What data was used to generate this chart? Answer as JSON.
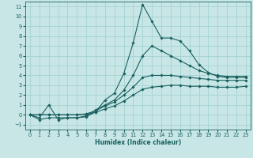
{
  "xlabel": "Humidex (Indice chaleur)",
  "bg_color": "#c8e6e6",
  "grid_color": "#9ecece",
  "line_color": "#1a6060",
  "spine_color": "#1a6060",
  "tick_color": "#1a6060",
  "xlim": [
    -0.5,
    23.5
  ],
  "ylim": [
    -1.5,
    11.5
  ],
  "xticks": [
    0,
    1,
    2,
    3,
    4,
    5,
    6,
    7,
    8,
    9,
    10,
    11,
    12,
    13,
    14,
    15,
    16,
    17,
    18,
    19,
    20,
    21,
    22,
    23
  ],
  "yticks": [
    -1,
    0,
    1,
    2,
    3,
    4,
    5,
    6,
    7,
    8,
    9,
    10,
    11
  ],
  "series": [
    [
      0,
      -0.3,
      1.0,
      -0.5,
      -0.3,
      -0.3,
      -0.2,
      0.3,
      1.5,
      2.2,
      4.2,
      7.3,
      11.2,
      9.5,
      7.8,
      7.8,
      7.5,
      6.5,
      5.1,
      4.3,
      3.9,
      3.8,
      3.8,
      3.8
    ],
    [
      0,
      -0.5,
      -0.3,
      -0.3,
      -0.3,
      -0.3,
      -0.1,
      0.5,
      1.0,
      1.5,
      2.5,
      4.0,
      6.0,
      7.0,
      6.5,
      6.0,
      5.5,
      5.0,
      4.5,
      4.2,
      4.0,
      3.9,
      3.9,
      3.9
    ],
    [
      0,
      0,
      0,
      0,
      0,
      0,
      0.1,
      0.4,
      0.9,
      1.3,
      2.0,
      2.8,
      3.8,
      4.0,
      4.0,
      4.0,
      3.9,
      3.8,
      3.7,
      3.6,
      3.5,
      3.5,
      3.5,
      3.5
    ],
    [
      0,
      0,
      0,
      0,
      0,
      0,
      0.05,
      0.25,
      0.6,
      0.9,
      1.4,
      2.0,
      2.6,
      2.8,
      2.9,
      3.0,
      3.0,
      2.9,
      2.9,
      2.9,
      2.8,
      2.8,
      2.8,
      2.9
    ]
  ],
  "xlabel_fontsize": 5.5,
  "tick_fontsize": 4.8,
  "marker": "D",
  "marker_size": 1.8,
  "linewidth": 0.8
}
